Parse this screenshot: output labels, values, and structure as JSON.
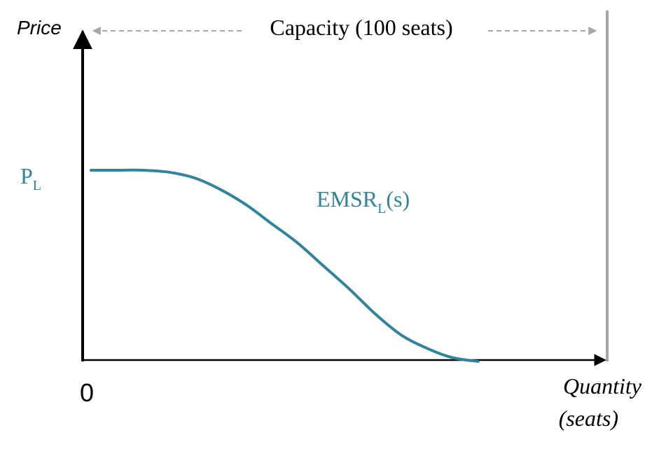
{
  "chart_data": {
    "type": "line",
    "ylabel": "Price",
    "xlabel_line1": "Quantity",
    "xlabel_line2": "(seats)",
    "origin_label": "0",
    "capacity_label": "Capacity (100 seats)",
    "price_label": {
      "main": "P",
      "sub": "L"
    },
    "series": [
      {
        "name_main": "EMSR",
        "name_sub": "L",
        "name_suffix": "(s)",
        "x": [
          0,
          5,
          10,
          15,
          20,
          25,
          30,
          35,
          40,
          45,
          50,
          55,
          60,
          65,
          70,
          75
        ],
        "y": [
          1.0,
          1.0,
          1.0,
          0.99,
          0.96,
          0.9,
          0.82,
          0.72,
          0.62,
          0.5,
          0.38,
          0.25,
          0.14,
          0.07,
          0.02,
          0.0
        ]
      }
    ],
    "xlim": [
      0,
      100
    ],
    "ylim": [
      0,
      1.0
    ],
    "capacity_x": 100,
    "grid": false,
    "colors": {
      "axis": "#000000",
      "curve": "#31849b",
      "capacity": "#a6a6a6",
      "arrow": "#a6a6a6"
    }
  }
}
